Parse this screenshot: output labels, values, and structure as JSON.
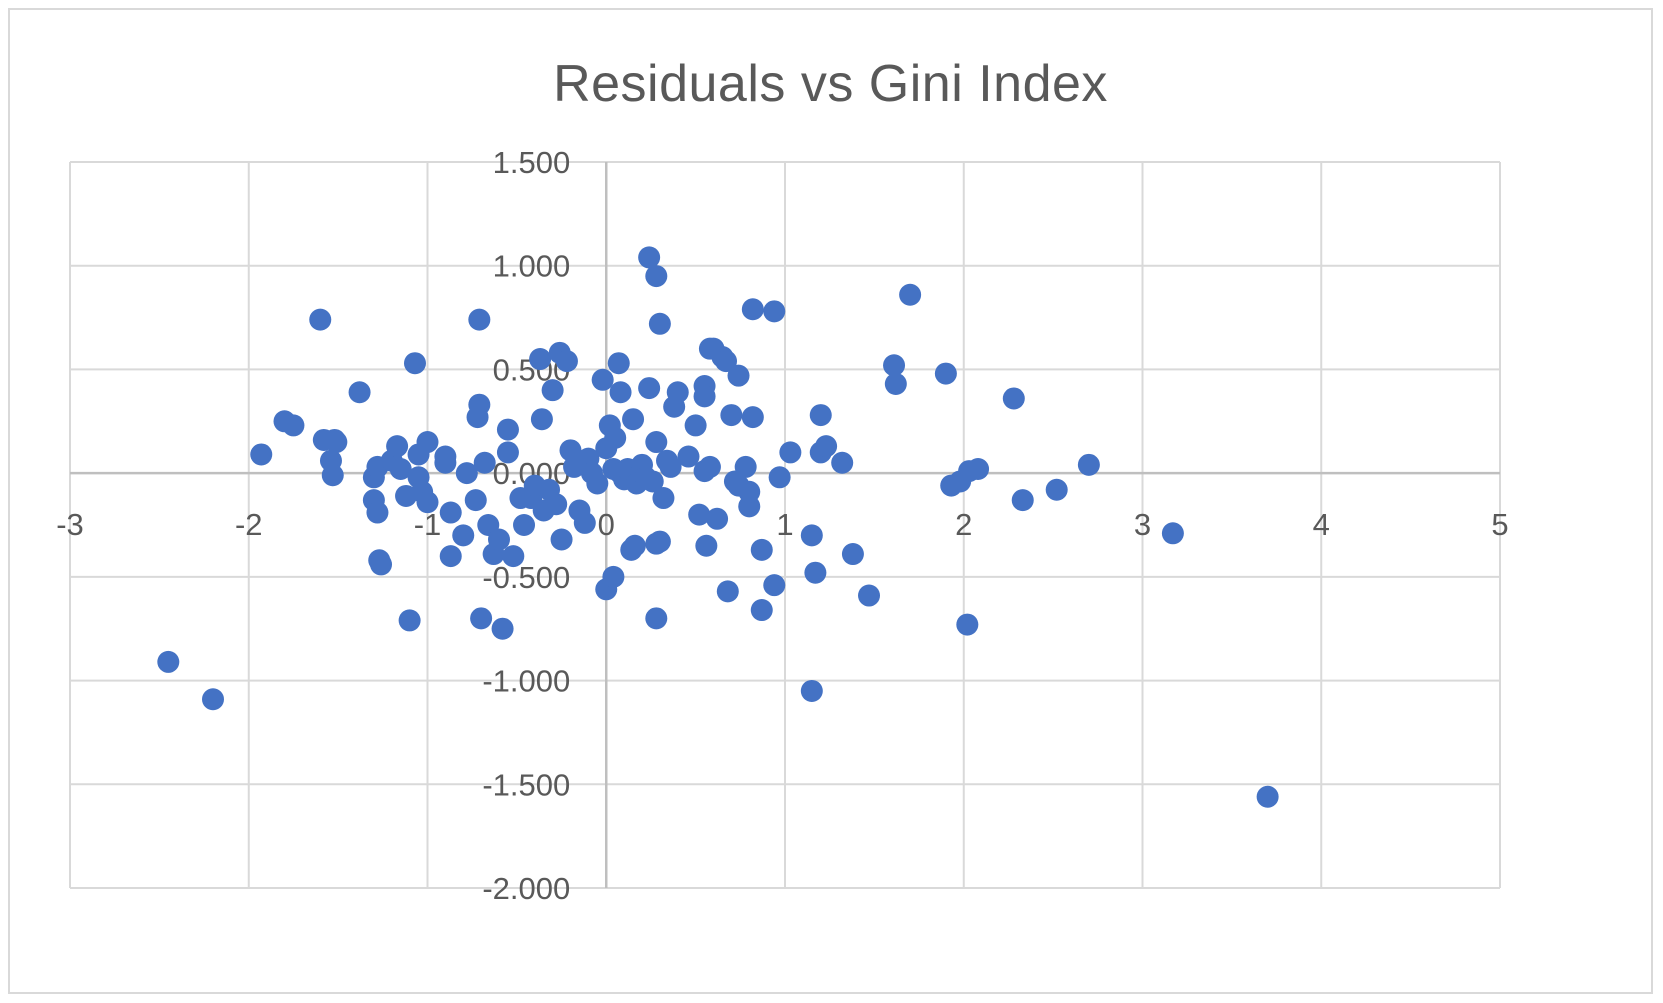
{
  "chart_data": {
    "type": "scatter",
    "title": "Residuals vs Gini Index",
    "xlabel": "",
    "ylabel": "",
    "xlim": [
      -3,
      5
    ],
    "ylim": [
      -2.0,
      1.5
    ],
    "x_ticks": [
      "-3",
      "-2",
      "-1",
      "0",
      "1",
      "2",
      "3",
      "4",
      "5"
    ],
    "y_ticks": [
      "1.500",
      "1.000",
      "0.500",
      "0.000",
      "-0.500",
      "-1.000",
      "-1.500",
      "-2.000"
    ],
    "grid": true,
    "legend": "none",
    "marker_color": "#4472c4",
    "grid_color": "#d9d9d9",
    "series": [
      {
        "points": [
          [
            -2.45,
            -0.91
          ],
          [
            -2.2,
            -1.09
          ],
          [
            -1.93,
            0.09
          ],
          [
            -1.8,
            0.25
          ],
          [
            -1.75,
            0.23
          ],
          [
            -1.6,
            0.74
          ],
          [
            -1.58,
            0.16
          ],
          [
            -1.52,
            0.16
          ],
          [
            -1.51,
            0.15
          ],
          [
            -1.54,
            0.06
          ],
          [
            -1.53,
            -0.01
          ],
          [
            -1.38,
            0.39
          ],
          [
            -1.3,
            -0.02
          ],
          [
            -1.28,
            0.03
          ],
          [
            -1.3,
            -0.13
          ],
          [
            -1.28,
            -0.19
          ],
          [
            -1.27,
            -0.42
          ],
          [
            -1.26,
            -0.44
          ],
          [
            -1.2,
            0.06
          ],
          [
            -1.17,
            0.13
          ],
          [
            -1.15,
            0.02
          ],
          [
            -1.12,
            -0.11
          ],
          [
            -1.1,
            -0.71
          ],
          [
            -1.07,
            0.53
          ],
          [
            -1.05,
            0.09
          ],
          [
            -1.05,
            -0.02
          ],
          [
            -1.03,
            -0.09
          ],
          [
            -1.0,
            0.15
          ],
          [
            -1.0,
            -0.14
          ],
          [
            -0.9,
            0.08
          ],
          [
            -0.9,
            0.05
          ],
          [
            -0.87,
            -0.19
          ],
          [
            -0.87,
            -0.4
          ],
          [
            -0.8,
            -0.3
          ],
          [
            -0.78,
            0.0
          ],
          [
            -0.73,
            -0.13
          ],
          [
            -0.72,
            0.27
          ],
          [
            -0.71,
            0.33
          ],
          [
            -0.71,
            0.74
          ],
          [
            -0.7,
            -0.7
          ],
          [
            -0.68,
            0.05
          ],
          [
            -0.66,
            -0.25
          ],
          [
            -0.63,
            -0.39
          ],
          [
            -0.6,
            -0.32
          ],
          [
            -0.58,
            -0.75
          ],
          [
            -0.55,
            0.21
          ],
          [
            -0.55,
            0.1
          ],
          [
            -0.52,
            -0.4
          ],
          [
            -0.48,
            -0.12
          ],
          [
            -0.46,
            -0.25
          ],
          [
            -0.42,
            -0.12
          ],
          [
            -0.4,
            -0.06
          ],
          [
            -0.36,
            0.26
          ],
          [
            -0.37,
            0.55
          ],
          [
            -0.35,
            -0.18
          ],
          [
            -0.32,
            -0.08
          ],
          [
            -0.3,
            0.4
          ],
          [
            -0.28,
            -0.15
          ],
          [
            -0.26,
            0.58
          ],
          [
            -0.22,
            0.54
          ],
          [
            -0.25,
            -0.32
          ],
          [
            -0.2,
            0.11
          ],
          [
            -0.18,
            0.03
          ],
          [
            -0.15,
            -0.18
          ],
          [
            -0.12,
            -0.24
          ],
          [
            -0.1,
            0.07
          ],
          [
            -0.08,
            0.0
          ],
          [
            -0.05,
            -0.05
          ],
          [
            -0.02,
            0.45
          ],
          [
            0.0,
            0.12
          ],
          [
            0.02,
            0.23
          ],
          [
            0.04,
            0.02
          ],
          [
            0.05,
            0.17
          ],
          [
            0.07,
            0.53
          ],
          [
            0.08,
            0.39
          ],
          [
            0.08,
            0.0
          ],
          [
            0.1,
            -0.03
          ],
          [
            0.12,
            0.02
          ],
          [
            0.15,
            0.26
          ],
          [
            0.17,
            -0.05
          ],
          [
            0.14,
            -0.37
          ],
          [
            0.16,
            -0.35
          ],
          [
            0.0,
            -0.56
          ],
          [
            0.04,
            -0.5
          ],
          [
            0.2,
            0.04
          ],
          [
            0.22,
            -0.02
          ],
          [
            0.24,
            1.04
          ],
          [
            0.24,
            0.41
          ],
          [
            0.26,
            -0.04
          ],
          [
            0.28,
            0.95
          ],
          [
            0.28,
            0.15
          ],
          [
            0.28,
            -0.34
          ],
          [
            0.28,
            -0.7
          ],
          [
            0.3,
            0.72
          ],
          [
            0.3,
            -0.33
          ],
          [
            0.32,
            -0.12
          ],
          [
            0.34,
            0.06
          ],
          [
            0.36,
            0.03
          ],
          [
            0.38,
            0.32
          ],
          [
            0.4,
            0.39
          ],
          [
            0.46,
            0.08
          ],
          [
            0.5,
            0.23
          ],
          [
            0.52,
            -0.2
          ],
          [
            0.55,
            0.42
          ],
          [
            0.55,
            0.37
          ],
          [
            0.55,
            0.01
          ],
          [
            0.56,
            -0.35
          ],
          [
            0.58,
            0.6
          ],
          [
            0.6,
            0.6
          ],
          [
            0.58,
            0.03
          ],
          [
            0.62,
            -0.22
          ],
          [
            0.65,
            0.56
          ],
          [
            0.67,
            0.54
          ],
          [
            0.68,
            -0.57
          ],
          [
            0.7,
            0.28
          ],
          [
            0.72,
            -0.04
          ],
          [
            0.74,
            0.47
          ],
          [
            0.74,
            -0.06
          ],
          [
            0.78,
            0.03
          ],
          [
            0.8,
            -0.16
          ],
          [
            0.8,
            -0.09
          ],
          [
            0.82,
            0.79
          ],
          [
            0.82,
            0.27
          ],
          [
            0.87,
            -0.37
          ],
          [
            0.87,
            -0.66
          ],
          [
            0.94,
            0.78
          ],
          [
            0.94,
            -0.54
          ],
          [
            0.97,
            -0.02
          ],
          [
            1.03,
            0.1
          ],
          [
            1.15,
            -0.3
          ],
          [
            1.15,
            -1.05
          ],
          [
            1.17,
            -0.48
          ],
          [
            1.2,
            0.28
          ],
          [
            1.2,
            0.1
          ],
          [
            1.23,
            0.13
          ],
          [
            1.32,
            0.05
          ],
          [
            1.38,
            -0.39
          ],
          [
            1.47,
            -0.59
          ],
          [
            1.61,
            0.52
          ],
          [
            1.62,
            0.43
          ],
          [
            1.7,
            0.86
          ],
          [
            1.9,
            0.48
          ],
          [
            1.93,
            -0.06
          ],
          [
            1.98,
            -0.04
          ],
          [
            2.02,
            -0.73
          ],
          [
            2.03,
            0.01
          ],
          [
            2.08,
            0.02
          ],
          [
            2.28,
            0.36
          ],
          [
            2.33,
            -0.13
          ],
          [
            2.52,
            -0.08
          ],
          [
            2.7,
            0.04
          ],
          [
            3.17,
            -0.29
          ],
          [
            3.7,
            -1.56
          ]
        ]
      }
    ]
  }
}
